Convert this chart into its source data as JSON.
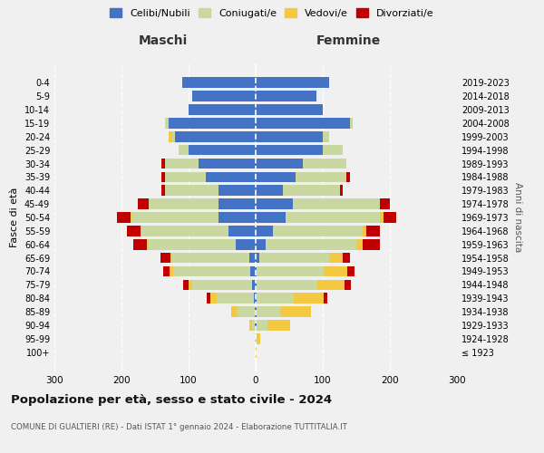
{
  "age_groups": [
    "100+",
    "95-99",
    "90-94",
    "85-89",
    "80-84",
    "75-79",
    "70-74",
    "65-69",
    "60-64",
    "55-59",
    "50-54",
    "45-49",
    "40-44",
    "35-39",
    "30-34",
    "25-29",
    "20-24",
    "15-19",
    "10-14",
    "5-9",
    "0-4"
  ],
  "birth_years": [
    "≤ 1923",
    "1924-1928",
    "1929-1933",
    "1934-1938",
    "1939-1943",
    "1944-1948",
    "1949-1953",
    "1954-1958",
    "1959-1963",
    "1964-1968",
    "1969-1973",
    "1974-1978",
    "1979-1983",
    "1984-1988",
    "1989-1993",
    "1994-1998",
    "1999-2003",
    "2004-2008",
    "2009-2013",
    "2014-2018",
    "2019-2023"
  ],
  "males": {
    "celibi": [
      0,
      0,
      1,
      2,
      3,
      5,
      8,
      10,
      30,
      40,
      55,
      55,
      55,
      75,
      85,
      100,
      120,
      130,
      100,
      95,
      110
    ],
    "coniugati": [
      0,
      1,
      5,
      25,
      55,
      90,
      115,
      115,
      130,
      130,
      130,
      105,
      80,
      60,
      50,
      15,
      5,
      5,
      0,
      0,
      0
    ],
    "vedovi": [
      0,
      0,
      4,
      10,
      10,
      5,
      5,
      2,
      2,
      2,
      2,
      0,
      0,
      0,
      0,
      0,
      5,
      0,
      0,
      0,
      0
    ],
    "divorziati": [
      0,
      0,
      0,
      0,
      5,
      8,
      10,
      15,
      20,
      20,
      20,
      15,
      5,
      5,
      5,
      0,
      0,
      0,
      0,
      0,
      0
    ]
  },
  "females": {
    "celibi": [
      0,
      0,
      2,
      2,
      2,
      2,
      2,
      5,
      15,
      25,
      45,
      55,
      40,
      60,
      70,
      100,
      100,
      140,
      100,
      90,
      110
    ],
    "coniugati": [
      0,
      2,
      15,
      35,
      55,
      90,
      100,
      105,
      135,
      135,
      140,
      130,
      85,
      75,
      65,
      30,
      10,
      5,
      0,
      0,
      0
    ],
    "vedovi": [
      2,
      5,
      35,
      45,
      45,
      40,
      35,
      20,
      10,
      5,
      5,
      0,
      0,
      0,
      0,
      0,
      0,
      0,
      0,
      0,
      0
    ],
    "divorziati": [
      0,
      0,
      0,
      0,
      5,
      10,
      10,
      10,
      25,
      20,
      20,
      15,
      5,
      5,
      0,
      0,
      0,
      0,
      0,
      0,
      0
    ]
  },
  "colors": {
    "celibi": "#4472C4",
    "coniugati": "#C8D8A0",
    "vedovi": "#F5C842",
    "divorziati": "#C00000"
  },
  "legend_labels": [
    "Celibi/Nubili",
    "Coniugati/e",
    "Vedovi/e",
    "Divorziati/e"
  ],
  "title": "Popolazione per età, sesso e stato civile - 2024",
  "subtitle": "COMUNE DI GUALTIERI (RE) - Dati ISTAT 1° gennaio 2024 - Elaborazione TUTTITALIA.IT",
  "ylabel": "Fasce di età",
  "ylabel_right": "Anni di nascita",
  "xlabel_left": "Maschi",
  "xlabel_right": "Femmine",
  "xlim": 300,
  "background_color": "#f0f0f0"
}
